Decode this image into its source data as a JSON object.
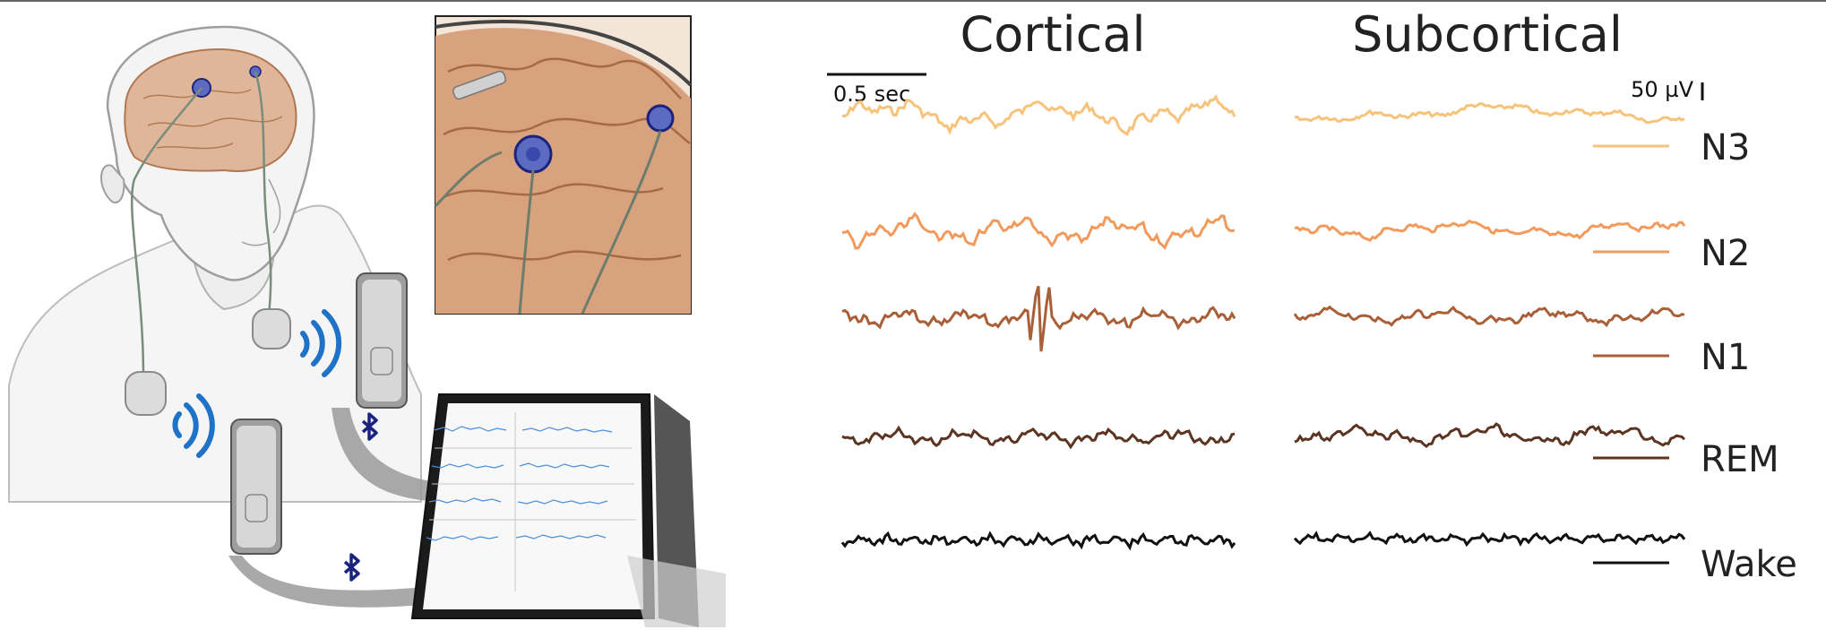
{
  "titles": {
    "cortical": "Cortical",
    "subcortical": "Subcortical"
  },
  "scale_bars": {
    "time": "0.5 sec",
    "amplitude": "50 µV"
  },
  "stages": [
    {
      "label": "N3",
      "color": "#F7C27A"
    },
    {
      "label": "N2",
      "color": "#F29A5C"
    },
    {
      "label": "N1",
      "color": "#A95F37"
    },
    {
      "label": "REM",
      "color": "#5B3522"
    },
    {
      "label": "Wake",
      "color": "#111111"
    }
  ],
  "colors": {
    "wireless": "#1E73C8",
    "bluetooth": "#1A237E",
    "brain": "#D9A27E",
    "trace_blue": "#4A90D9"
  },
  "illustration": {
    "icons": [
      "head-illustration",
      "implant-device",
      "wireless-signal-icon",
      "patient-programmer",
      "bluetooth-icon",
      "tablet",
      "brain-inset"
    ]
  }
}
